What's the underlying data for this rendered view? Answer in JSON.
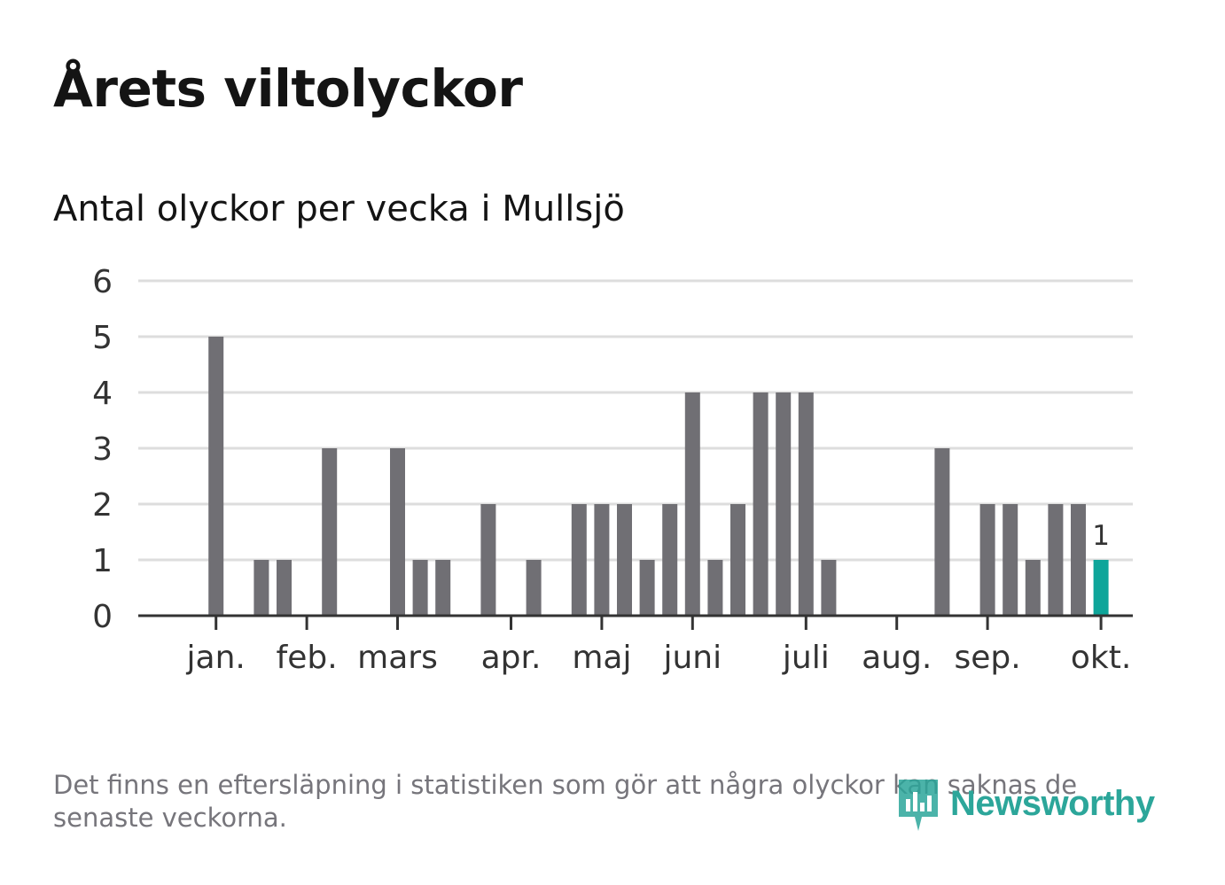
{
  "header": {
    "title": "Årets viltolyckor",
    "subtitle": "Antal olyckor per vecka i Mullsjö"
  },
  "footer": {
    "note": "Det finns en eftersläpning i statistiken som gör att några olyckor kan saknas de senaste veckorna.",
    "brand": "Newsworthy"
  },
  "colors": {
    "bar": "#706f74",
    "highlight": "#0ea59a",
    "grid": "#dddddd",
    "axis": "#333333",
    "brand": "#2ca69a"
  },
  "chart_data": {
    "type": "bar",
    "title": "Antal olyckor per vecka i Mullsjö",
    "xlabel": "",
    "ylabel": "",
    "ylim": [
      0,
      6
    ],
    "yticks": [
      "0",
      "1",
      "2",
      "3",
      "4",
      "5",
      "6"
    ],
    "weeks": [
      1,
      2,
      3,
      4,
      5,
      6,
      7,
      8,
      9,
      10,
      11,
      12,
      13,
      14,
      15,
      16,
      17,
      18,
      19,
      20,
      21,
      22,
      23,
      24,
      25,
      26,
      27,
      28,
      29,
      30,
      31,
      32,
      33,
      34,
      35,
      36,
      37,
      38,
      39,
      40,
      41,
      42,
      43
    ],
    "values": [
      0,
      0,
      5,
      0,
      1,
      1,
      0,
      3,
      0,
      0,
      3,
      1,
      1,
      0,
      2,
      0,
      1,
      0,
      2,
      2,
      2,
      1,
      2,
      4,
      1,
      2,
      4,
      4,
      4,
      1,
      0,
      0,
      0,
      0,
      3,
      0,
      2,
      2,
      1,
      2,
      2,
      1,
      0
    ],
    "highlight_index": 41,
    "highlight_label": "1",
    "months": [
      {
        "label": "jan.",
        "week": 3
      },
      {
        "label": "feb.",
        "week": 7
      },
      {
        "label": "mars",
        "week": 11
      },
      {
        "label": "apr.",
        "week": 16
      },
      {
        "label": "maj",
        "week": 20
      },
      {
        "label": "juni",
        "week": 24
      },
      {
        "label": "juli",
        "week": 29
      },
      {
        "label": "aug.",
        "week": 33
      },
      {
        "label": "sep.",
        "week": 37
      },
      {
        "label": "okt.",
        "week": 42
      }
    ]
  }
}
